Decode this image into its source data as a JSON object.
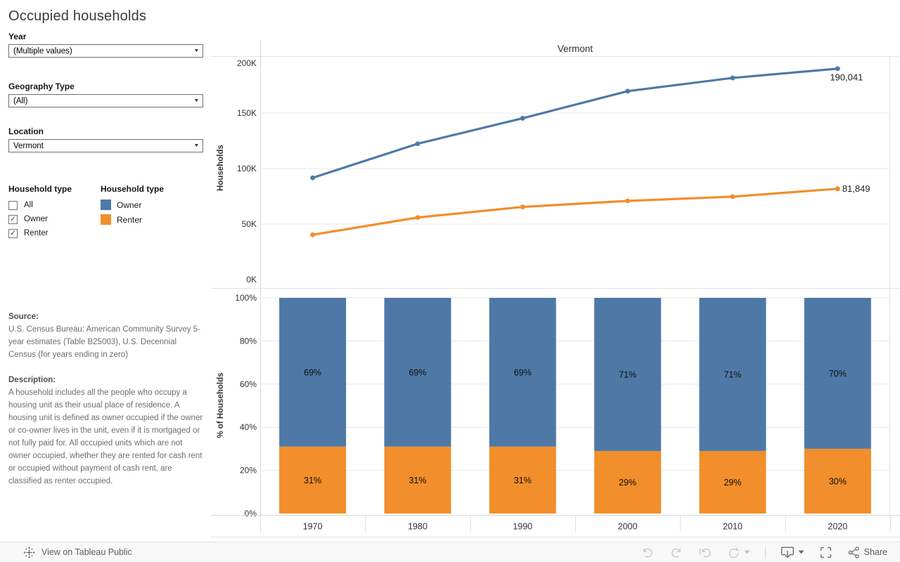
{
  "title": "Occupied households",
  "filters": {
    "year": {
      "label": "Year",
      "value": "(Multiple values)"
    },
    "geography_type": {
      "label": "Geography Type",
      "value": "(All)"
    },
    "location": {
      "label": "Location",
      "value": "Vermont"
    }
  },
  "household_filter": {
    "label": "Household type",
    "options": [
      {
        "label": "All",
        "checked": false
      },
      {
        "label": "Owner",
        "checked": true
      },
      {
        "label": "Renter",
        "checked": true
      }
    ]
  },
  "legend": {
    "label": "Household type",
    "items": [
      {
        "label": "Owner",
        "color": "#4e79a7"
      },
      {
        "label": "Renter",
        "color": "#f28e2b"
      }
    ]
  },
  "source": {
    "heading": "Source:",
    "text": "U.S. Census Bureau: American Community Survey 5-year estimates (Table B25003), U.S. Decennial Census (for years ending in zero)"
  },
  "description": {
    "heading": "Description:",
    "text": "A household includes all the people who occupy a housing unit as their usual place of residence. A housing unit is defined as owner occupied if the owner or co-owner lives in the unit, even if it is mortgaged or not fully paid for. All occupied units which are not owner occupied, whether they are rented for cash rent or occupied without payment of cash rent, are classified as renter occupied."
  },
  "chart_data": [
    {
      "type": "line",
      "title": "Vermont",
      "ylabel": "Households",
      "x": [
        "1970",
        "1980",
        "1990",
        "2000",
        "2010",
        "2020"
      ],
      "ylim": [
        0,
        201000
      ],
      "grid": true,
      "yticks": [
        {
          "value": 0,
          "label": "0K"
        },
        {
          "value": 50000,
          "label": "50K"
        },
        {
          "value": 100000,
          "label": "100K"
        },
        {
          "value": 150000,
          "label": "150K"
        },
        {
          "value": 200000,
          "label": "200K"
        }
      ],
      "series": [
        {
          "name": "Owner",
          "color": "#4e79a7",
          "values": [
            91697,
            122396,
            145368,
            169784,
            181695,
            190041
          ],
          "end_label": "190,041"
        },
        {
          "name": "Renter",
          "color": "#f28e2b",
          "values": [
            40401,
            55929,
            65482,
            70903,
            74716,
            81849
          ],
          "end_label": "81,849"
        }
      ],
      "legend_position": "left-sidebar"
    },
    {
      "type": "bar",
      "stacked": true,
      "ylabel": "% of Households",
      "categories": [
        "1970",
        "1980",
        "1990",
        "2000",
        "2010",
        "2020"
      ],
      "ylim": [
        0,
        100
      ],
      "grid": true,
      "yticks": [
        {
          "value": 0,
          "label": "0%"
        },
        {
          "value": 20,
          "label": "20%"
        },
        {
          "value": 40,
          "label": "40%"
        },
        {
          "value": 60,
          "label": "60%"
        },
        {
          "value": 80,
          "label": "80%"
        },
        {
          "value": 100,
          "label": "100%"
        }
      ],
      "series": [
        {
          "name": "Owner",
          "color": "#4e79a7",
          "values": [
            69,
            69,
            69,
            71,
            71,
            70
          ],
          "labels": [
            "69%",
            "69%",
            "69%",
            "71%",
            "71%",
            "70%"
          ]
        },
        {
          "name": "Renter",
          "color": "#f28e2b",
          "values": [
            31,
            31,
            31,
            29,
            29,
            30
          ],
          "labels": [
            "31%",
            "31%",
            "31%",
            "29%",
            "29%",
            "30%"
          ]
        }
      ],
      "legend_position": "left-sidebar"
    }
  ],
  "toolbar": {
    "view_label": "View on Tableau Public",
    "share_label": "Share"
  },
  "icons": {
    "dropdown_caret": "▼",
    "checkbox_check": "✓"
  },
  "colors": {
    "owner": "#4e79a7",
    "renter": "#f28e2b",
    "grid": "#e8e8e8",
    "axis": "#d4d4d4",
    "border": "#e2e2e2",
    "text": "#333333",
    "toolbar_bg": "#f8f8f8"
  }
}
